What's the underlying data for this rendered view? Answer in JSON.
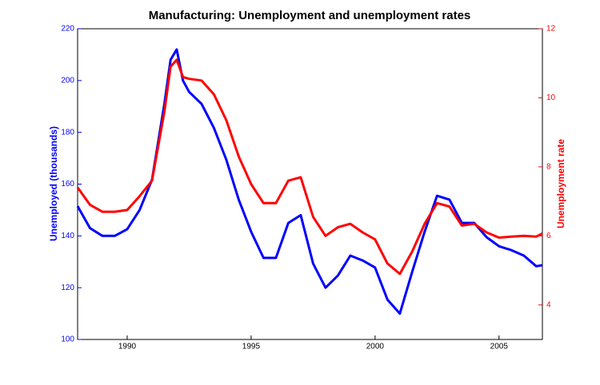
{
  "chart_data": {
    "type": "line",
    "title": "Manufacturing: Unemployment and unemployment rates",
    "ylabel": "Unemployed (thousands)",
    "y2label": "Unemployment rate",
    "x": [
      1988,
      1988.5,
      1989,
      1989.5,
      1990,
      1990.5,
      1991,
      1991.5,
      1991.75,
      1992,
      1992.25,
      1992.5,
      1993,
      1993.5,
      1994,
      1994.5,
      1995,
      1995.5,
      1996,
      1996.5,
      1997,
      1997.5,
      1998,
      1998.5,
      1999,
      1999.5,
      2000,
      2000.5,
      2001,
      2001.5,
      2002,
      2002.5,
      2003,
      2003.5,
      2004,
      2004.5,
      2005,
      2005.5,
      2006,
      2006.5,
      2006.75
    ],
    "series": [
      {
        "name": "Unemployed (thousands)",
        "color": "#0000ff",
        "axis": "y",
        "values": [
          151.5,
          143,
          140,
          140,
          142.6,
          150,
          161.7,
          191,
          208,
          212,
          200,
          195.6,
          191,
          181.7,
          169.4,
          154,
          141.6,
          131.5,
          131.5,
          145,
          148,
          129.3,
          120,
          124.7,
          132.4,
          130.5,
          127.8,
          115.4,
          110,
          126.2,
          141.6,
          155.5,
          154,
          145,
          145,
          139.5,
          136,
          134.5,
          132.4,
          128.3,
          128.7
        ]
      },
      {
        "name": "Unemployment rate",
        "color": "#ff0000",
        "axis": "y2",
        "values": [
          7.4,
          6.9,
          6.7,
          6.7,
          6.75,
          7.15,
          7.6,
          9.6,
          10.9,
          11.1,
          10.6,
          10.55,
          10.5,
          10.1,
          9.35,
          8.3,
          7.5,
          6.95,
          6.95,
          7.6,
          7.7,
          6.55,
          6.0,
          6.25,
          6.35,
          6.1,
          5.9,
          5.2,
          4.9,
          5.55,
          6.35,
          6.95,
          6.85,
          6.3,
          6.35,
          6.1,
          5.95,
          5.98,
          6.0,
          5.98,
          6.07
        ]
      }
    ],
    "xlim": [
      1988,
      2006.75
    ],
    "xticks": [
      1990,
      1995,
      2000,
      2005
    ],
    "ylim": [
      100,
      220
    ],
    "yticks": [
      100,
      120,
      140,
      160,
      180,
      200,
      220
    ],
    "y2lim": [
      3,
      12
    ],
    "y2ticks": [
      4,
      6,
      8,
      10,
      12
    ]
  }
}
